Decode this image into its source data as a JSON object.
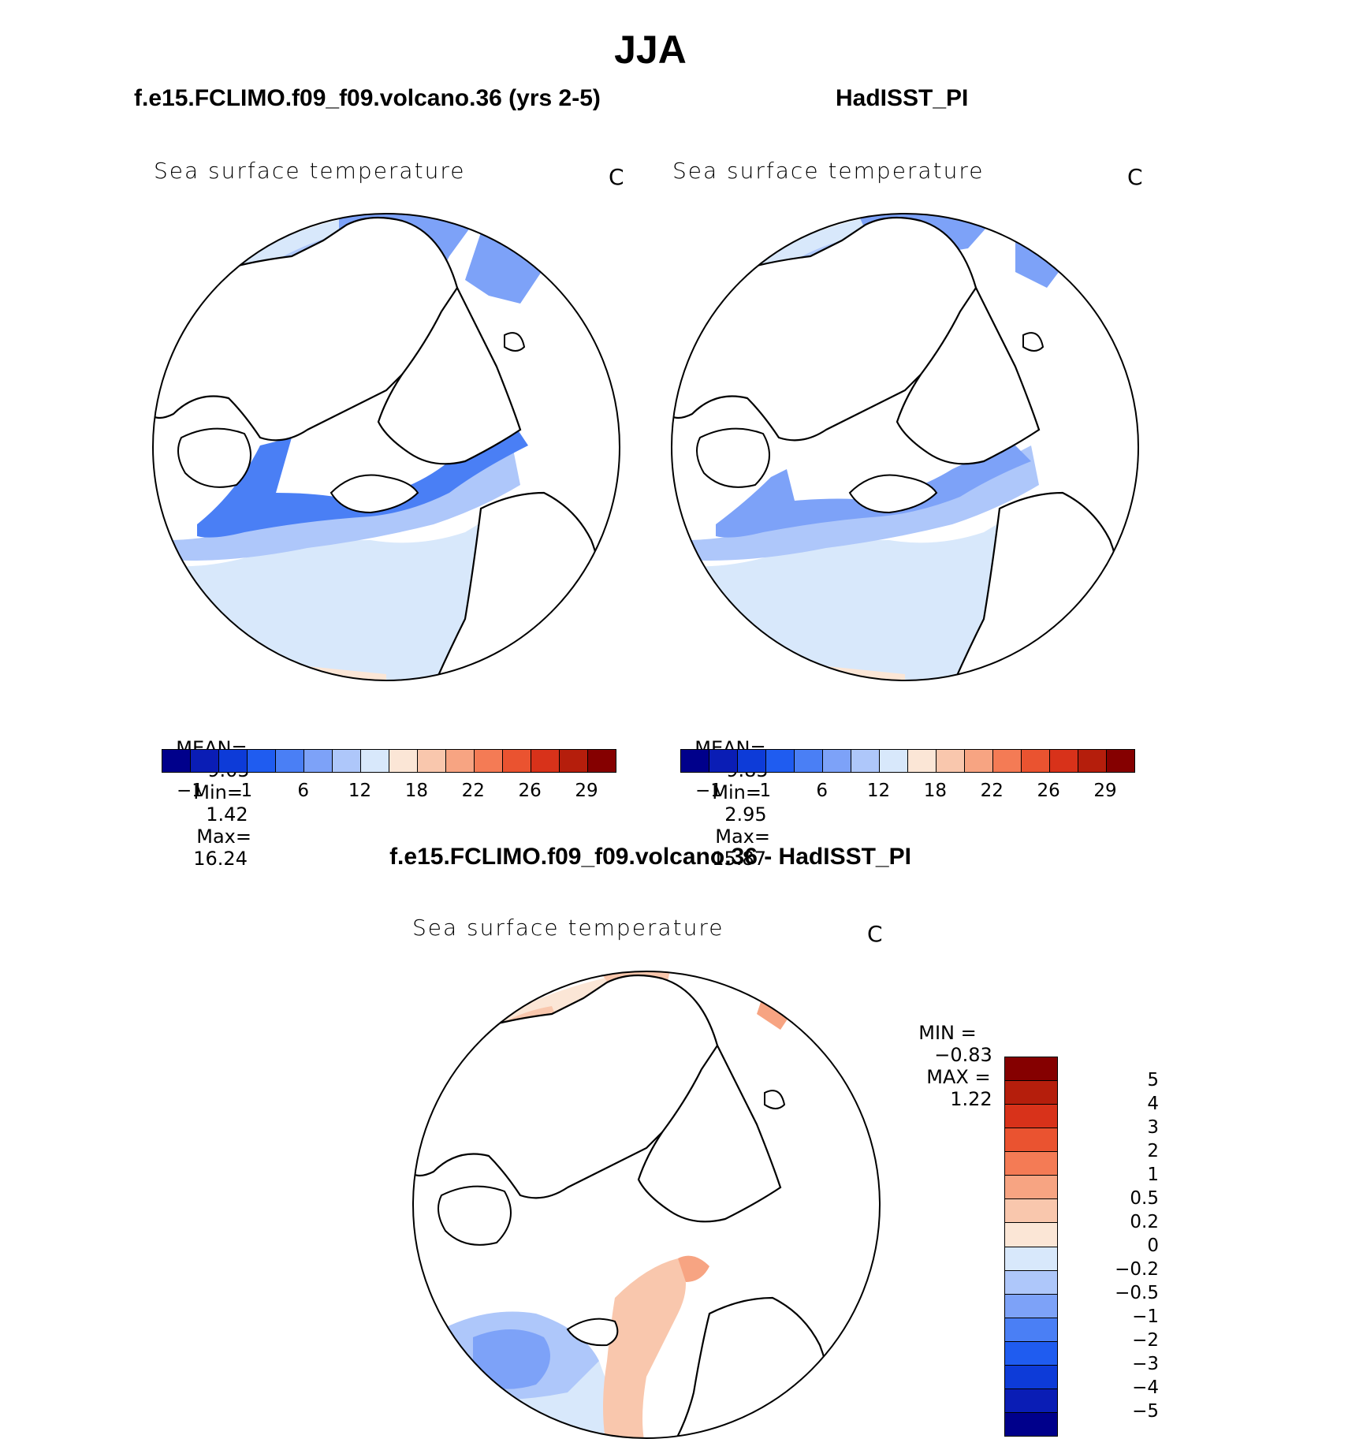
{
  "title": "JJA",
  "chart_data": [
    {
      "type": "map",
      "panel_title": "f.e15.FCLIMO.f09_f09.volcano.36 (yrs 2-5)",
      "variable": "Sea surface temperature",
      "units": "C",
      "projection": "north polar stereographic",
      "stats": {
        "mean_label": "MEAN=",
        "mean": "9.05",
        "min_label": "Min=",
        "min": "1.42",
        "max_label": "Max=",
        "max": "16.24"
      },
      "colorbar": {
        "levels": [
          -1,
          1,
          6,
          12,
          18,
          22,
          26,
          29
        ],
        "tick_labels": [
          "−1",
          "1",
          "6",
          "12",
          "18",
          "22",
          "26",
          "29"
        ],
        "colors": [
          "#00008b",
          "#0a1db5",
          "#0d3bd8",
          "#1f5cf0",
          "#4a7ff5",
          "#7da2f8",
          "#aec7fa",
          "#d8e8fb",
          "#fbe6d6",
          "#f9c7ad",
          "#f7a482",
          "#f47b55",
          "#ea5330",
          "#d8321a",
          "#b51e0c",
          "#850000"
        ]
      }
    },
    {
      "type": "map",
      "panel_title": "HadISST_PI",
      "variable": "Sea surface temperature",
      "units": "C",
      "projection": "north polar stereographic",
      "stats": {
        "mean_label": "MEAN=",
        "mean": "9.85",
        "min_label": "Min=",
        "min": "2.95",
        "max_label": "Max=",
        "max": "15.87"
      },
      "colorbar": {
        "levels": [
          -1,
          1,
          6,
          12,
          18,
          22,
          26,
          29
        ],
        "tick_labels": [
          "−1",
          "1",
          "6",
          "12",
          "18",
          "22",
          "26",
          "29"
        ],
        "colors": [
          "#00008b",
          "#0a1db5",
          "#0d3bd8",
          "#1f5cf0",
          "#4a7ff5",
          "#7da2f8",
          "#aec7fa",
          "#d8e8fb",
          "#fbe6d6",
          "#f9c7ad",
          "#f7a482",
          "#f47b55",
          "#ea5330",
          "#d8321a",
          "#b51e0c",
          "#850000"
        ]
      }
    },
    {
      "type": "map",
      "panel_title": "f.e15.FCLIMO.f09_f09.volcano.36 - HadISST_PI",
      "variable": "Sea surface temperature",
      "units": "C",
      "projection": "north polar stereographic",
      "stats": {
        "min_label": "MIN =",
        "min": "−0.83",
        "max_label": "MAX =",
        "max": "1.22"
      },
      "colorbar": {
        "levels": [
          5,
          4,
          3,
          2,
          1,
          0.5,
          0.2,
          0,
          -0.2,
          -0.5,
          -1,
          -2,
          -3,
          -4,
          -5
        ],
        "tick_labels": [
          "5",
          "4",
          "3",
          "2",
          "1",
          "0.5",
          "0.2",
          "0",
          "−0.2",
          "−0.5",
          "−1",
          "−2",
          "−3",
          "−4",
          "−5"
        ],
        "colors": [
          "#850000",
          "#b51e0c",
          "#d8321a",
          "#ea5330",
          "#f47b55",
          "#f7a482",
          "#f9c7ad",
          "#fbe6d6",
          "#d8e8fb",
          "#aec7fa",
          "#7da2f8",
          "#4a7ff5",
          "#1f5cf0",
          "#0d3bd8",
          "#0a1db5",
          "#00008b"
        ]
      }
    }
  ]
}
